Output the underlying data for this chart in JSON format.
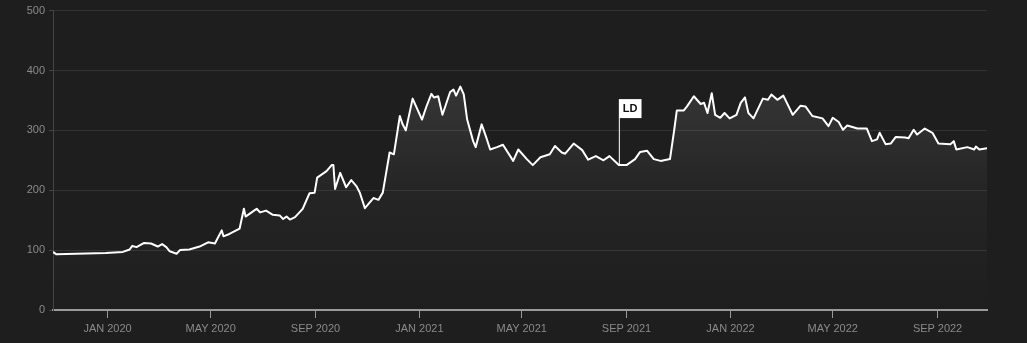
{
  "chart_data": {
    "type": "area",
    "x": [
      "2019-10-29",
      "2019-11-02",
      "2019-12-30",
      "2020-01-19",
      "2020-01-27",
      "2020-01-30",
      "2020-02-04",
      "2020-02-13",
      "2020-02-21",
      "2020-02-29",
      "2020-03-05",
      "2020-03-10",
      "2020-03-14",
      "2020-03-22",
      "2020-03-26",
      "2020-04-06",
      "2020-04-18",
      "2020-04-28",
      "2020-05-06",
      "2020-05-14",
      "2020-05-16",
      "2020-05-23",
      "2020-06-04",
      "2020-06-09",
      "2020-06-11",
      "2020-06-24",
      "2020-06-28",
      "2020-07-05",
      "2020-07-13",
      "2020-07-21",
      "2020-07-25",
      "2020-07-29",
      "2020-08-02",
      "2020-08-08",
      "2020-08-17",
      "2020-08-25",
      "2020-08-31",
      "2020-09-03",
      "2020-09-14",
      "2020-09-20",
      "2020-09-22",
      "2020-09-24",
      "2020-09-30",
      "2020-10-07",
      "2020-10-13",
      "2020-10-19",
      "2020-10-23",
      "2020-10-29",
      "2020-11-08",
      "2020-11-14",
      "2020-11-19",
      "2020-11-27",
      "2020-12-02",
      "2020-12-09",
      "2020-12-12",
      "2020-12-16",
      "2020-12-24",
      "2021-01-04",
      "2021-01-09",
      "2021-01-15",
      "2021-01-18",
      "2021-01-23",
      "2021-01-28",
      "2021-02-06",
      "2021-02-10",
      "2021-02-13",
      "2021-02-18",
      "2021-02-22",
      "2021-02-26",
      "2021-03-05",
      "2021-03-08",
      "2021-03-15",
      "2021-03-20",
      "2021-03-25",
      "2021-04-02",
      "2021-04-09",
      "2021-04-21",
      "2021-04-27",
      "2021-05-07",
      "2021-05-14",
      "2021-05-23",
      "2021-06-03",
      "2021-06-09",
      "2021-06-17",
      "2021-06-21",
      "2021-07-01",
      "2021-07-11",
      "2021-07-18",
      "2021-07-27",
      "2021-08-05",
      "2021-08-12",
      "2021-08-23",
      "2021-09-01",
      "2021-09-11",
      "2021-09-17",
      "2021-09-25",
      "2021-10-03",
      "2021-10-11",
      "2021-10-22",
      "2021-10-27",
      "2021-10-30",
      "2021-11-07",
      "2021-11-11",
      "2021-11-19",
      "2021-11-27",
      "2021-12-01",
      "2021-12-05",
      "2021-12-10",
      "2021-12-14",
      "2021-12-20",
      "2021-12-25",
      "2021-12-31",
      "2022-01-08",
      "2022-01-13",
      "2022-01-18",
      "2022-01-22",
      "2022-01-28",
      "2022-02-08",
      "2022-02-14",
      "2022-02-18",
      "2022-02-25",
      "2022-03-04",
      "2022-03-15",
      "2022-03-24",
      "2022-03-30",
      "2022-04-07",
      "2022-04-19",
      "2022-04-26",
      "2022-05-01",
      "2022-05-08",
      "2022-05-13",
      "2022-05-18",
      "2022-05-30",
      "2022-06-10",
      "2022-06-16",
      "2022-06-22",
      "2022-06-25",
      "2022-07-02",
      "2022-07-08",
      "2022-07-14",
      "2022-07-25",
      "2022-07-29",
      "2022-08-04",
      "2022-08-08",
      "2022-08-17",
      "2022-08-26",
      "2022-09-02",
      "2022-09-16",
      "2022-09-20",
      "2022-09-23",
      "2022-10-06",
      "2022-10-14",
      "2022-10-16",
      "2022-10-20",
      "2022-10-29"
    ],
    "series": [
      {
        "color": "#ffffff",
        "values": [
          97,
          93,
          95,
          97,
          101,
          107,
          105,
          112,
          111,
          106,
          110,
          105,
          98,
          94,
          100,
          101,
          106,
          113,
          111,
          133,
          123,
          127,
          136,
          169,
          156,
          169,
          163,
          166,
          159,
          158,
          152,
          156,
          151,
          155,
          169,
          195,
          196,
          221,
          232,
          242,
          242,
          202,
          229,
          205,
          217,
          207,
          196,
          170,
          187,
          184,
          196,
          263,
          260,
          324,
          311,
          300,
          353,
          318,
          339,
          361,
          355,
          357,
          326,
          364,
          368,
          358,
          373,
          360,
          318,
          282,
          272,
          310,
          290,
          268,
          272,
          276,
          249,
          268,
          252,
          242,
          255,
          260,
          274,
          263,
          261,
          278,
          267,
          251,
          257,
          250,
          257,
          242,
          242,
          252,
          264,
          266,
          252,
          249,
          252,
          301,
          333,
          333,
          340,
          357,
          344,
          346,
          329,
          362,
          326,
          321,
          329,
          320,
          326,
          346,
          355,
          329,
          320,
          353,
          351,
          360,
          351,
          358,
          326,
          341,
          340,
          324,
          320,
          307,
          321,
          314,
          301,
          308,
          303,
          303,
          282,
          285,
          296,
          277,
          278,
          289,
          288,
          287,
          301,
          293,
          303,
          296,
          278,
          277,
          282,
          268,
          272,
          268,
          273,
          268,
          270
        ]
      }
    ],
    "xlim": [
      "2019-10-29",
      "2022-10-29"
    ],
    "xticks": [
      {
        "value": "2020-01-01",
        "label": "JAN 2020"
      },
      {
        "value": "2020-05-01",
        "label": "MAY 2020"
      },
      {
        "value": "2020-09-01",
        "label": "SEP 2020"
      },
      {
        "value": "2021-01-01",
        "label": "JAN 2021"
      },
      {
        "value": "2021-05-01",
        "label": "MAY 2021"
      },
      {
        "value": "2021-09-01",
        "label": "SEP 2021"
      },
      {
        "value": "2022-01-01",
        "label": "JAN 2022"
      },
      {
        "value": "2022-05-01",
        "label": "MAY 2022"
      },
      {
        "value": "2022-09-01",
        "label": "SEP 2022"
      }
    ],
    "ylim": [
      0,
      500
    ],
    "yticks": [
      0,
      100,
      200,
      300,
      400,
      500
    ],
    "grid": "y",
    "annotations": [
      {
        "text": "LD",
        "x": "2021-08-23",
        "y": 242
      }
    ]
  }
}
